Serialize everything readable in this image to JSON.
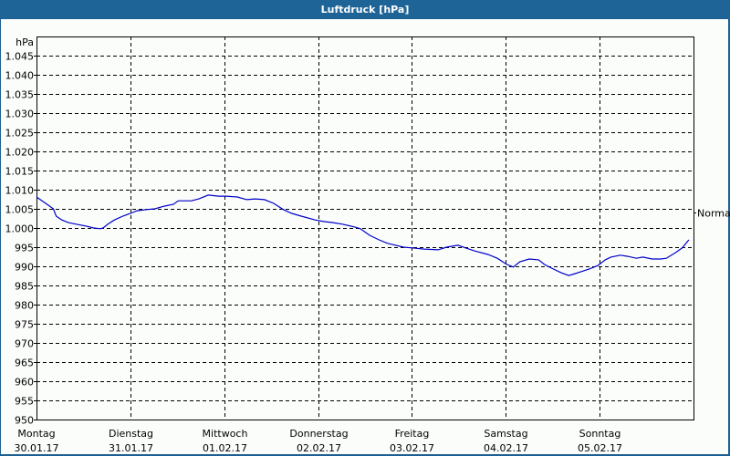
{
  "window": {
    "title": "Luftdruck [hPa]"
  },
  "chart_data": {
    "type": "line",
    "title": "Luftdruck [hPa]",
    "ylabel": "hPa",
    "xlabel": "",
    "ylim": [
      950,
      1050
    ],
    "yticks": [
      "950",
      "955",
      "960",
      "965",
      "970",
      "975",
      "980",
      "985",
      "990",
      "995",
      "1.000",
      "1.005",
      "1.010",
      "1.015",
      "1.020",
      "1.025",
      "1.030",
      "1.035",
      "1.040",
      "1.045"
    ],
    "grid": true,
    "reference_line": {
      "label": "Normal",
      "value": 1004
    },
    "categories": [
      {
        "day": "Montag",
        "date": "30.01.17"
      },
      {
        "day": "Dienstag",
        "date": "31.01.17"
      },
      {
        "day": "Mittwoch",
        "date": "01.02.17"
      },
      {
        "day": "Donnerstag",
        "date": "02.02.17"
      },
      {
        "day": "Freitag",
        "date": "03.02.17"
      },
      {
        "day": "Samstag",
        "date": "04.02.17"
      },
      {
        "day": "Sonntag",
        "date": "05.02.17"
      }
    ],
    "series": [
      {
        "name": "Luftdruck",
        "color": "#0000c8",
        "x_days": [
          0.0,
          0.1,
          0.18,
          0.21,
          0.27,
          0.34,
          0.44,
          0.53,
          0.61,
          0.68,
          0.71,
          0.76,
          0.83,
          0.92,
          1.0,
          1.07,
          1.17,
          1.26,
          1.36,
          1.46,
          1.51,
          1.65,
          1.73,
          1.83,
          1.94,
          2.02,
          2.14,
          2.24,
          2.33,
          2.43,
          2.53,
          2.63,
          2.72,
          2.82,
          2.97,
          3.06,
          3.16,
          3.26,
          3.4,
          3.45,
          3.55,
          3.65,
          3.74,
          3.79,
          3.91,
          4.0,
          4.13,
          4.28,
          4.37,
          4.49,
          4.57,
          4.67,
          4.81,
          4.91,
          5.01,
          5.08,
          5.15,
          5.25,
          5.35,
          5.41,
          5.49,
          5.59,
          5.67,
          5.74,
          5.89,
          5.98,
          6.06,
          6.12,
          6.22,
          6.3,
          6.39,
          6.46,
          6.56,
          6.65,
          6.71,
          6.81,
          6.88,
          6.95
        ],
        "values": [
          1008.1,
          1006.4,
          1005.0,
          1003.1,
          1002.1,
          1001.4,
          1000.9,
          1000.5,
          1000.0,
          999.8,
          1000.0,
          1001.0,
          1002.1,
          1003.1,
          1003.8,
          1004.5,
          1004.8,
          1005.0,
          1005.7,
          1006.2,
          1007.1,
          1007.1,
          1007.6,
          1008.6,
          1008.3,
          1008.3,
          1008.1,
          1007.4,
          1007.6,
          1007.4,
          1006.4,
          1004.8,
          1003.8,
          1003.1,
          1002.1,
          1001.7,
          1001.4,
          1001.0,
          1000.2,
          999.8,
          998.1,
          996.9,
          996.0,
          995.7,
          995.0,
          994.8,
          994.5,
          994.3,
          995.0,
          995.5,
          994.8,
          994.0,
          993.1,
          992.1,
          990.5,
          989.8,
          991.2,
          991.9,
          991.7,
          990.5,
          989.5,
          988.3,
          987.6,
          988.1,
          989.3,
          990.2,
          991.7,
          992.4,
          992.9,
          992.6,
          992.1,
          992.4,
          991.9,
          991.9,
          992.1,
          993.6,
          994.8,
          996.9
        ]
      }
    ]
  }
}
